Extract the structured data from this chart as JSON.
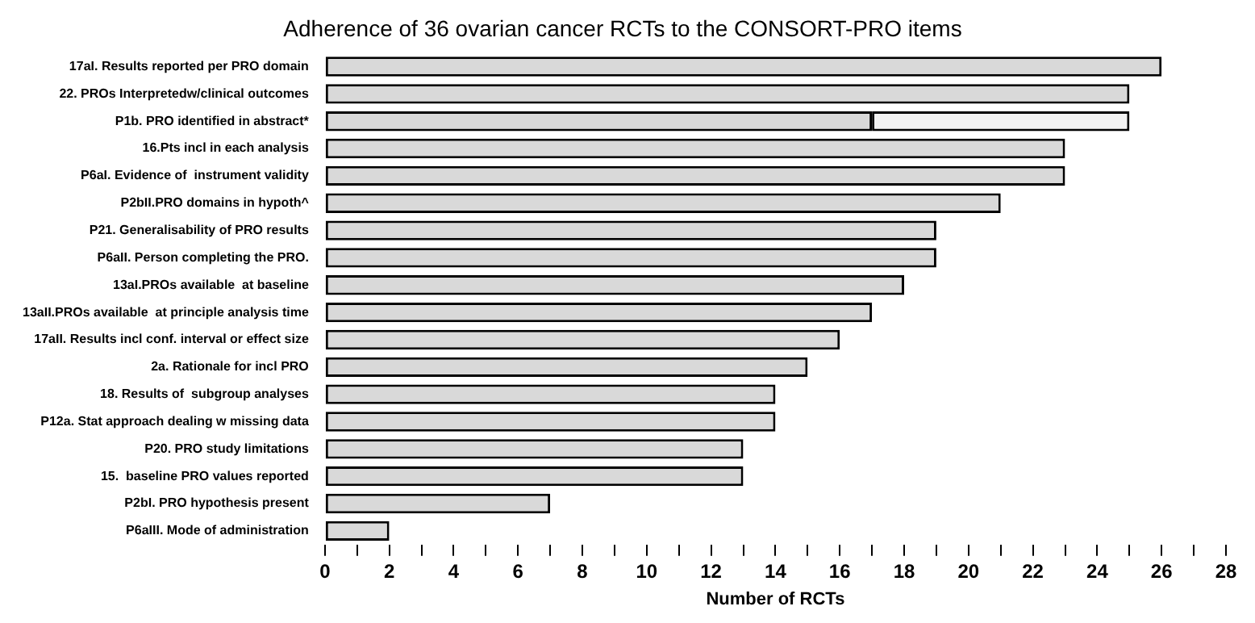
{
  "chart_data": {
    "type": "bar",
    "orientation": "horizontal",
    "stacked": true,
    "title": "Adherence of 36 ovarian cancer RCTs to the CONSORT-PRO items",
    "xlabel": "Number of RCTs",
    "categories": [
      "17aI. Results reported per PRO domain",
      "22. PROs Interpretedw/clinical outcomes",
      "P1b. PRO identified in abstract*",
      "16.Pts incl in each analysis",
      "P6aI. Evidence of  instrument validity",
      "P2bII.PRO domains in hypoth^",
      "P21. Generalisability of PRO results",
      "P6aII. Person completing the PRO.",
      "13aI.PROs available  at baseline",
      "13aII.PROs available  at principle analysis time",
      "17aII. Results incl conf. interval or effect size",
      "2a. Rationale for incl PRO",
      "18. Results of  subgroup analyses",
      "P12a. Stat approach dealing w missing data",
      "P20. PRO study limitations",
      "15.  baseline PRO values reported",
      "P2bI. PRO hypothesis present",
      "P6aIII. Mode of administration"
    ],
    "series": [
      {
        "color": "#d9d9d9",
        "values": [
          26,
          25,
          17,
          23,
          23,
          21,
          19,
          19,
          18,
          17,
          16,
          15,
          14,
          14,
          13,
          13,
          7,
          2
        ]
      },
      {
        "color": "#f2f2f2",
        "values": [
          null,
          null,
          8,
          null,
          null,
          null,
          null,
          null,
          null,
          null,
          null,
          null,
          null,
          null,
          null,
          null,
          null,
          null
        ]
      }
    ],
    "xlim": [
      0,
      28
    ],
    "xticks": [
      0,
      {
        "value": 1,
        "label": null
      },
      2,
      {
        "value": 3,
        "label": null
      },
      4,
      {
        "value": 5,
        "label": null
      },
      6,
      {
        "value": 7,
        "label": null
      },
      8,
      {
        "value": 9,
        "label": null
      },
      10,
      {
        "value": 11,
        "label": null
      },
      12,
      {
        "value": 13,
        "label": null
      },
      14,
      {
        "value": 15,
        "label": null
      },
      16,
      {
        "value": 17,
        "label": null
      },
      18,
      {
        "value": 19,
        "label": null
      },
      20,
      {
        "value": 21,
        "label": null
      },
      22,
      {
        "value": 23,
        "label": null
      },
      24,
      {
        "value": 25,
        "label": null
      },
      26,
      {
        "value": 27,
        "label": null
      },
      28
    ],
    "grid": false,
    "legend": false
  }
}
